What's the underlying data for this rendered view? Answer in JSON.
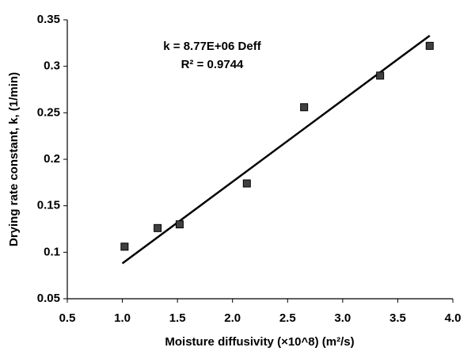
{
  "chart_data": {
    "type": "scatter",
    "xlabel": "Moisture diffusivity (×10^8) (m²/s)",
    "ylabel": "Drying rate constant, k, (1/min)",
    "annotations": [
      "k = 8.77E+06 Deff",
      "R² = 0.9744"
    ],
    "x": [
      1.02,
      1.32,
      1.52,
      2.13,
      2.65,
      3.34,
      3.79
    ],
    "values": [
      0.106,
      0.126,
      0.13,
      0.174,
      0.256,
      0.29,
      0.322
    ],
    "color": "#404040",
    "trendline": {
      "x": [
        1.0,
        3.79
      ],
      "values": [
        0.088,
        0.333
      ],
      "color": "#000000"
    },
    "xlim": [
      0.5,
      4.0
    ],
    "xticks": [
      0.5,
      {
        "value": 1,
        "label": "1.0"
      },
      1.5,
      {
        "value": 2,
        "label": "2.0"
      },
      2.5,
      {
        "value": 3,
        "label": "3.0"
      },
      3.5,
      {
        "value": 4,
        "label": "4.0"
      }
    ],
    "ylim": [
      0.05,
      0.35
    ],
    "yticks": [
      0.05,
      0.1,
      0.15,
      0.2,
      0.25,
      0.3,
      0.35
    ],
    "grid": false
  }
}
